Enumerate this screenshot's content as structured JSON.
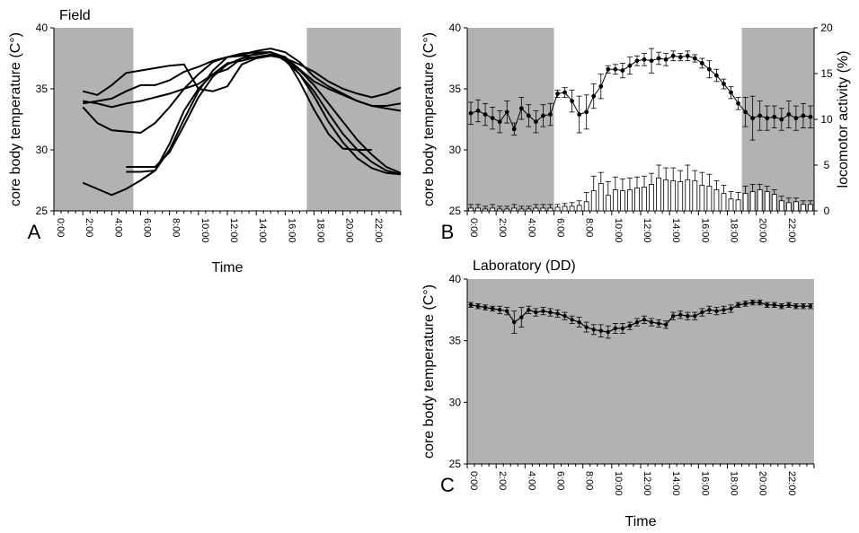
{
  "figure": {
    "x_tick_labels": [
      "0:00",
      "2:00",
      "4:00",
      "6:00",
      "8:00",
      "10:00",
      "12:00",
      "14:00",
      "16:00",
      "18:00",
      "20:00",
      "22:00"
    ]
  },
  "chart_data": [
    {
      "panel_label": "A",
      "type": "line",
      "title": "Field",
      "xlabel": "Time",
      "ylabel": "core body temperature (C°)",
      "xlim": [
        0,
        24
      ],
      "ylim": [
        25,
        40
      ],
      "yticks": [
        25,
        30,
        35,
        40
      ],
      "shaded_intervals": [
        [
          0,
          5.5
        ],
        [
          17.5,
          24
        ]
      ],
      "grid": false,
      "series": [
        {
          "x": [
            2,
            3,
            4,
            5,
            6,
            7,
            8,
            9,
            10,
            11,
            12,
            13,
            14,
            15,
            16,
            17,
            18,
            19,
            20,
            21,
            22,
            23,
            24
          ],
          "y": [
            27.3,
            26.8,
            26.3,
            26.8,
            27.5,
            28.3,
            30.0,
            32.5,
            34.8,
            36.5,
            37.6,
            37.9,
            38.0,
            38.0,
            37.3,
            36.2,
            34.8,
            33.0,
            31.3,
            30.0,
            29.0,
            28.3,
            28.0
          ]
        },
        {
          "x": [
            2,
            3,
            4,
            5,
            6,
            7,
            8,
            9,
            10,
            11,
            12,
            13,
            14,
            15,
            16,
            17,
            18,
            19,
            20,
            21,
            22,
            23,
            24
          ],
          "y": [
            33.5,
            32.2,
            31.6,
            31.5,
            31.4,
            32.2,
            33.5,
            35.0,
            36.2,
            37.2,
            37.6,
            37.7,
            37.8,
            38.0,
            37.4,
            36.5,
            35.3,
            33.8,
            32.3,
            30.8,
            29.6,
            28.6,
            28.1
          ]
        },
        {
          "x": [
            5,
            6,
            7,
            8,
            9,
            10,
            11,
            12,
            13,
            14,
            15,
            16,
            17,
            18,
            19,
            20,
            21,
            22
          ],
          "y": [
            28.6,
            28.6,
            28.6,
            29.8,
            32.0,
            34.3,
            36.0,
            37.0,
            37.5,
            37.6,
            37.8,
            37.6,
            35.6,
            33.3,
            31.3,
            30.1,
            30.0,
            30.0
          ]
        },
        {
          "x": [
            5,
            6,
            7,
            8,
            9,
            10,
            11,
            12,
            13,
            14,
            15,
            16,
            17,
            18,
            19,
            20,
            21,
            22,
            23,
            24
          ],
          "y": [
            28.2,
            28.2,
            28.3,
            30.5,
            33.2,
            35.0,
            36.2,
            37.1,
            37.3,
            37.6,
            37.8,
            37.5,
            36.2,
            34.4,
            32.3,
            30.6,
            29.3,
            28.5,
            28.1,
            28.0
          ]
        },
        {
          "x": [
            2,
            3,
            4,
            5,
            6,
            7,
            8,
            9,
            10,
            11,
            12,
            13,
            14,
            15,
            16,
            17,
            18,
            19,
            20,
            21,
            22,
            23,
            24
          ],
          "y": [
            34.8,
            34.5,
            35.3,
            36.3,
            36.5,
            36.7,
            36.9,
            37.0,
            35.0,
            34.8,
            35.2,
            37.0,
            37.5,
            37.7,
            37.5,
            37.0,
            36.4,
            35.6,
            35.0,
            34.6,
            34.3,
            34.6,
            35.1
          ]
        },
        {
          "x": [
            2,
            3,
            4,
            5,
            6,
            7,
            8,
            9,
            10,
            11,
            12,
            13,
            14,
            15,
            16,
            17,
            18,
            19,
            20,
            21,
            22,
            23,
            24
          ],
          "y": [
            34.0,
            33.8,
            33.5,
            33.8,
            34.0,
            34.3,
            34.6,
            35.0,
            35.4,
            36.2,
            36.6,
            37.5,
            37.9,
            38.0,
            37.6,
            36.6,
            35.6,
            35.0,
            34.5,
            34.0,
            33.6,
            33.4,
            33.2
          ]
        },
        {
          "x": [
            2,
            3,
            4,
            5,
            6,
            7,
            8,
            9,
            10,
            11,
            12,
            13,
            14,
            15,
            16,
            17,
            18,
            19,
            20,
            21,
            22,
            23,
            24
          ],
          "y": [
            33.8,
            34.0,
            34.2,
            34.8,
            35.3,
            35.3,
            35.7,
            36.4,
            36.8,
            37.3,
            37.6,
            37.8,
            38.1,
            38.3,
            38.0,
            37.2,
            36.0,
            35.2,
            34.6,
            34.0,
            33.6,
            33.6,
            33.8
          ]
        }
      ]
    },
    {
      "panel_label": "B",
      "type": "line",
      "title": "",
      "xlabel": "",
      "ylabel": "core body temperature (C°)",
      "ylabel_right": "locomotor activity (%)",
      "xlim": [
        0,
        24
      ],
      "ylim": [
        25,
        40
      ],
      "ylim_right": [
        0,
        20
      ],
      "yticks": [
        25,
        30,
        35,
        40
      ],
      "yticks_right": [
        0,
        5,
        10,
        15,
        20
      ],
      "shaded_intervals": [
        [
          0,
          6
        ],
        [
          19,
          24
        ]
      ],
      "grid": false,
      "series": [
        {
          "type": "line_markers_errorbars",
          "axis": "left",
          "x": [
            0.25,
            0.75,
            1.25,
            1.75,
            2.25,
            2.75,
            3.25,
            3.75,
            4.25,
            4.75,
            5.25,
            5.75,
            6.25,
            6.75,
            7.25,
            7.75,
            8.25,
            8.75,
            9.25,
            9.75,
            10.25,
            10.75,
            11.25,
            11.75,
            12.25,
            12.75,
            13.25,
            13.75,
            14.25,
            14.75,
            15.25,
            15.75,
            16.25,
            16.75,
            17.25,
            17.75,
            18.25,
            18.75,
            19.25,
            19.75,
            20.25,
            20.75,
            21.25,
            21.75,
            22.25,
            22.75,
            23.25,
            23.75
          ],
          "y": [
            33.0,
            33.2,
            32.9,
            32.6,
            32.3,
            33.1,
            31.7,
            33.4,
            32.8,
            32.3,
            32.8,
            32.9,
            34.6,
            34.7,
            34.0,
            32.9,
            33.1,
            34.4,
            35.2,
            36.6,
            36.6,
            36.5,
            36.9,
            37.3,
            37.4,
            37.3,
            37.5,
            37.4,
            37.7,
            37.6,
            37.7,
            37.5,
            37.1,
            36.6,
            36.1,
            35.4,
            34.7,
            33.8,
            33.1,
            32.6,
            32.8,
            32.6,
            32.7,
            32.5,
            32.9,
            32.6,
            32.8,
            32.7
          ],
          "err": [
            0.9,
            0.9,
            0.9,
            0.9,
            0.9,
            0.9,
            0.5,
            0.9,
            0.9,
            0.9,
            0.9,
            0.9,
            0.3,
            0.4,
            0.9,
            1.5,
            1.4,
            1.0,
            1.0,
            0.3,
            0.4,
            0.6,
            0.7,
            0.4,
            0.5,
            1.0,
            0.5,
            0.5,
            0.4,
            0.3,
            0.4,
            0.3,
            0.4,
            0.7,
            0.5,
            0.4,
            0.5,
            0.5,
            1.2,
            1.8,
            1.2,
            1.0,
            0.9,
            0.9,
            1.1,
            1.0,
            1.0,
            0.9
          ]
        },
        {
          "type": "bar_errorbars",
          "axis": "right",
          "x": [
            0.25,
            0.75,
            1.25,
            1.75,
            2.25,
            2.75,
            3.25,
            3.75,
            4.25,
            4.75,
            5.25,
            5.75,
            6.25,
            6.75,
            7.25,
            7.75,
            8.25,
            8.75,
            9.25,
            9.75,
            10.25,
            10.75,
            11.25,
            11.75,
            12.25,
            12.75,
            13.25,
            13.75,
            14.25,
            14.75,
            15.25,
            15.75,
            16.25,
            16.75,
            17.25,
            17.75,
            18.25,
            18.75,
            19.25,
            19.75,
            20.25,
            20.75,
            21.25,
            21.75,
            22.25,
            22.75,
            23.25,
            23.75
          ],
          "y": [
            0.3,
            0.3,
            0.2,
            0.3,
            0.2,
            0.2,
            0.3,
            0.2,
            0.2,
            0.3,
            0.3,
            0.3,
            0.4,
            0.5,
            0.5,
            0.6,
            1.0,
            2.2,
            3.0,
            1.7,
            2.3,
            2.2,
            2.3,
            2.5,
            2.6,
            2.9,
            3.6,
            3.4,
            3.3,
            3.2,
            3.4,
            3.3,
            2.8,
            2.7,
            2.3,
            1.9,
            1.3,
            1.2,
            1.9,
            2.1,
            2.3,
            2.1,
            1.8,
            1.1,
            0.9,
            1.0,
            0.7,
            0.7
          ],
          "err": [
            0.4,
            0.4,
            0.3,
            0.4,
            0.3,
            0.3,
            0.4,
            0.3,
            0.3,
            0.4,
            0.4,
            0.4,
            0.3,
            0.3,
            0.4,
            0.5,
            1.0,
            1.6,
            1.2,
            1.5,
            1.4,
            1.3,
            1.3,
            1.2,
            1.2,
            1.2,
            1.4,
            1.3,
            1.4,
            1.2,
            1.6,
            1.1,
            1.4,
            1.3,
            1.0,
            0.9,
            0.8,
            0.8,
            0.8,
            0.8,
            0.6,
            0.6,
            0.5,
            0.5,
            0.5,
            0.4,
            0.4,
            0.4
          ]
        }
      ]
    },
    {
      "panel_label": "C",
      "type": "line",
      "title": "Laboratory (DD)",
      "xlabel": "Time",
      "ylabel": "core body temperature (C°)",
      "xlim": [
        0,
        24
      ],
      "ylim": [
        25,
        40
      ],
      "yticks": [
        25,
        30,
        35,
        40
      ],
      "shaded_intervals": [
        [
          0,
          24
        ]
      ],
      "grid": false,
      "series": [
        {
          "type": "line_markers_errorbars",
          "x": [
            0.25,
            0.75,
            1.25,
            1.75,
            2.25,
            2.75,
            3.25,
            3.75,
            4.25,
            4.75,
            5.25,
            5.75,
            6.25,
            6.75,
            7.25,
            7.75,
            8.25,
            8.75,
            9.25,
            9.75,
            10.25,
            10.75,
            11.25,
            11.75,
            12.25,
            12.75,
            13.25,
            13.75,
            14.25,
            14.75,
            15.25,
            15.75,
            16.25,
            16.75,
            17.25,
            17.75,
            18.25,
            18.75,
            19.25,
            19.75,
            20.25,
            20.75,
            21.25,
            21.75,
            22.25,
            22.75,
            23.25,
            23.75
          ],
          "y": [
            37.9,
            37.8,
            37.7,
            37.6,
            37.5,
            37.4,
            36.5,
            36.9,
            37.5,
            37.3,
            37.4,
            37.3,
            37.2,
            37.0,
            36.7,
            36.5,
            36.1,
            35.9,
            35.8,
            35.7,
            36.0,
            36.0,
            36.2,
            36.5,
            36.7,
            36.5,
            36.4,
            36.3,
            37.0,
            37.1,
            37.0,
            37.0,
            37.3,
            37.5,
            37.4,
            37.5,
            37.6,
            37.9,
            38.0,
            38.1,
            38.1,
            37.9,
            37.9,
            37.8,
            37.9,
            37.8,
            37.8,
            37.8
          ],
          "err": [
            0.2,
            0.2,
            0.2,
            0.2,
            0.3,
            0.3,
            0.9,
            0.8,
            0.3,
            0.3,
            0.3,
            0.3,
            0.3,
            0.3,
            0.3,
            0.4,
            0.4,
            0.4,
            0.5,
            0.5,
            0.4,
            0.4,
            0.3,
            0.3,
            0.3,
            0.3,
            0.3,
            0.3,
            0.3,
            0.3,
            0.3,
            0.3,
            0.3,
            0.3,
            0.3,
            0.3,
            0.3,
            0.2,
            0.2,
            0.2,
            0.2,
            0.2,
            0.2,
            0.2,
            0.2,
            0.2,
            0.2,
            0.2
          ]
        }
      ]
    }
  ]
}
